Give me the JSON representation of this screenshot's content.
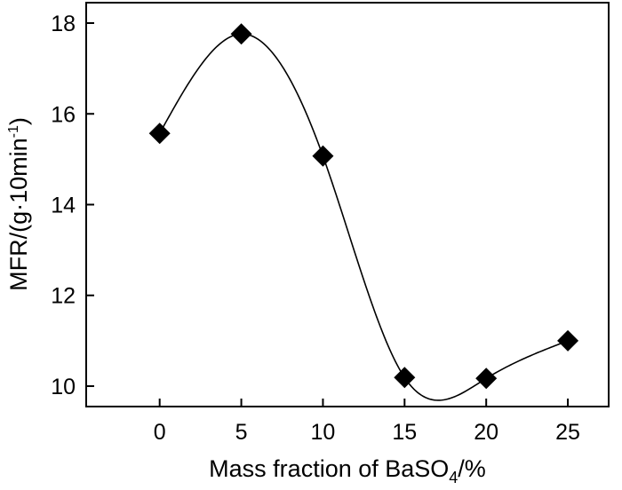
{
  "chart_data": {
    "type": "scatter",
    "title": "",
    "xlabel": {
      "prefix": "Mass fraction of BaSO",
      "subscript": "4",
      "suffix": "/%"
    },
    "ylabel": {
      "prefix": "MFR/(g·10min",
      "superscript": "-1",
      "suffix": ")"
    },
    "xlim": [
      -4.5,
      27.5
    ],
    "ylim": [
      9.55,
      18.45
    ],
    "x_ticks": [
      0,
      5,
      10,
      15,
      20,
      25
    ],
    "y_ticks": [
      10,
      12,
      14,
      16,
      18
    ],
    "x_tick_labels": [
      "0",
      "5",
      "10",
      "15",
      "20",
      "25"
    ],
    "y_tick_labels": [
      "10",
      "12",
      "14",
      "16",
      "18"
    ],
    "marker": "diamond",
    "smooth_curve": true,
    "grid": false,
    "series": [
      {
        "name": "MFR",
        "x": [
          0,
          5,
          10,
          15,
          20,
          25
        ],
        "y": [
          15.57,
          17.76,
          15.07,
          10.19,
          10.17,
          11.0
        ]
      }
    ],
    "colors": {
      "marker": "#000000",
      "line": "#000000",
      "axes": "#000000"
    }
  }
}
